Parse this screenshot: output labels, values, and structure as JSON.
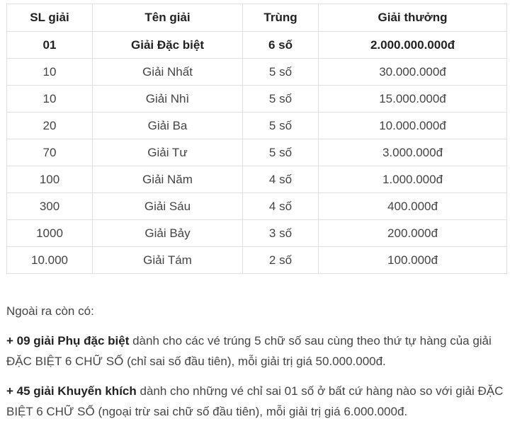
{
  "table": {
    "headers": [
      "SL giải",
      "Tên giải",
      "Trùng",
      "Giải thưởng"
    ],
    "rows": [
      [
        "01",
        "Giải Đặc biệt",
        "6 số",
        "2.000.000.000đ"
      ],
      [
        "10",
        "Giải Nhất",
        "5 số",
        "30.000.000đ"
      ],
      [
        "10",
        "Giải Nhì",
        "5 số",
        "15.000.000đ"
      ],
      [
        "20",
        "Giải Ba",
        "5 số",
        "10.000.000đ"
      ],
      [
        "70",
        "Giải Tư",
        "5 số",
        "3.000.000đ"
      ],
      [
        "100",
        "Giải Năm",
        "4 số",
        "1.000.000đ"
      ],
      [
        "300",
        "Giải Sáu",
        "4 số",
        "400.000đ"
      ],
      [
        "1000",
        "Giải Bảy",
        "3 số",
        "200.000đ"
      ],
      [
        "10.000",
        "Giải Tám",
        "2 số",
        "100.000đ"
      ]
    ]
  },
  "notes": {
    "intro": "Ngoài ra còn có:",
    "items": [
      {
        "bold": "+ 09 giải Phụ đặc biệt",
        "text": " dành cho các vé trúng 5 chữ số sau cùng theo thứ tự hàng của giải ĐẶC BIỆT 6 CHỮ SỐ (chỉ sai số đầu tiên), mỗi giải trị giá 50.000.000đ."
      },
      {
        "bold": "+ 45 giải Khuyến khích",
        "text": " dành cho những vé chỉ sai 01 số ở bất cứ hàng nào so với giải ĐẶC BIỆT 6 CHỮ SỐ (ngoại trừ sai chữ số đầu tiên), mỗi giải trị giá 6.000.000đ."
      }
    ]
  }
}
